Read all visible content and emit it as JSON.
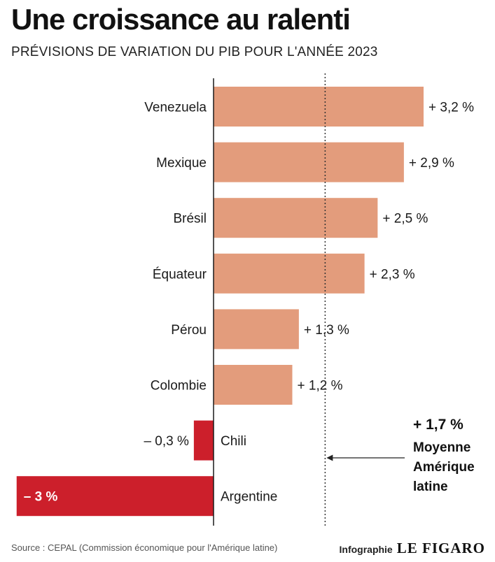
{
  "header": {
    "title": "Une croissance au ralenti",
    "subtitle": "PRÉVISIONS DE VARIATION DU PIB POUR L'ANNÉE 2023"
  },
  "chart_data": {
    "type": "bar",
    "orientation": "horizontal",
    "title": "Une croissance au ralenti",
    "subtitle": "PRÉVISIONS DE VARIATION DU PIB POUR L'ANNÉE 2023",
    "unit": "%",
    "categories": [
      "Venezuela",
      "Mexique",
      "Brésil",
      "Équateur",
      "Pérou",
      "Colombie",
      "Chili",
      "Argentine"
    ],
    "values": [
      3.2,
      2.9,
      2.5,
      2.3,
      1.3,
      1.2,
      -0.3,
      -3
    ],
    "value_labels": [
      "+ 3,2 %",
      "+ 2,9 %",
      "+ 2,5 %",
      "+ 2,3 %",
      "+ 1,3 %",
      "+ 1,2 %",
      "– 0,3 %",
      "– 3 %"
    ],
    "reference_line": {
      "value": 1.7,
      "value_label": "+ 1,7 %",
      "text_lines": [
        "Moyenne",
        "Amérique",
        "latine"
      ],
      "style": "dotted"
    },
    "grid": false,
    "legend": "none"
  },
  "colors": {
    "positive_bar": "#e39c7c",
    "negative_bar": "#cc1f2b",
    "axis": "#1a1a1a"
  },
  "footer": {
    "source": "Source : CEPAL (Commission économique pour l'Amérique latine)",
    "credit_label": "Infographie",
    "credit_brand": "LE FIGARO"
  }
}
